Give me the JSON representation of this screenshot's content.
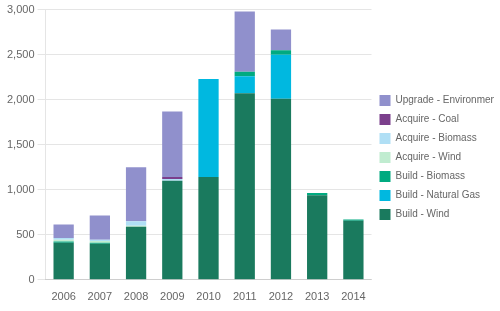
{
  "chart_data": {
    "type": "bar",
    "categories": [
      "2006",
      "2007",
      "2008",
      "2009",
      "2010",
      "2011",
      "2012",
      "2013",
      "2014"
    ],
    "series": [
      {
        "name": "Build - Wind",
        "color": "#1a7a5e",
        "values": [
          410,
          400,
          590,
          1100,
          1140,
          2070,
          2010,
          940,
          655
        ]
      },
      {
        "name": "Build - Natural Gas",
        "color": "#00b8e0",
        "values": [
          0,
          0,
          0,
          0,
          1090,
          190,
          490,
          0,
          0
        ]
      },
      {
        "name": "Build - Biomass",
        "color": "#00aa80",
        "values": [
          15,
          10,
          0,
          0,
          0,
          50,
          50,
          25,
          15
        ]
      },
      {
        "name": "Acquire - Wind",
        "color": "#c0ecd0",
        "values": [
          20,
          20,
          10,
          0,
          0,
          0,
          0,
          0,
          0
        ]
      },
      {
        "name": "Acquire - Biomass",
        "color": "#b0dff5",
        "values": [
          20,
          15,
          50,
          20,
          0,
          0,
          0,
          0,
          0
        ]
      },
      {
        "name": "Acquire - Coal",
        "color": "#7b3f8c",
        "values": [
          0,
          0,
          0,
          20,
          0,
          0,
          0,
          0,
          0
        ]
      },
      {
        "name": "Upgrade - Environmental",
        "color": "#9090cc",
        "values": [
          150,
          270,
          600,
          730,
          0,
          670,
          230,
          0,
          0
        ]
      }
    ],
    "stacked": true,
    "ylim": [
      0,
      3000
    ],
    "yticks": [
      0,
      500,
      {
        "value": 1000,
        "label": "1,000"
      },
      {
        "value": 1500,
        "label": "1,500"
      },
      {
        "value": 2000,
        "label": "2,000"
      },
      {
        "value": 2500,
        "label": "2,500"
      },
      {
        "value": 3000,
        "label": "3,000"
      }
    ],
    "grid": true,
    "legend": "right"
  }
}
